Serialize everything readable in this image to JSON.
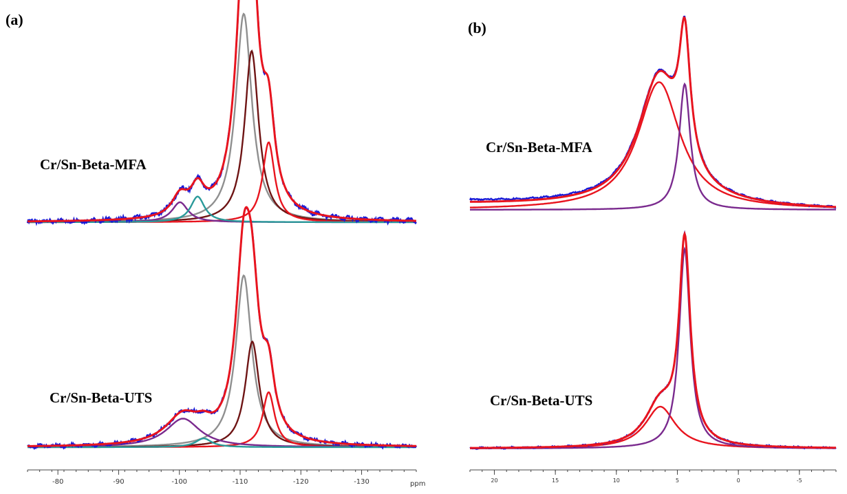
{
  "panels": {
    "a": {
      "label": "(a)",
      "unit": "ppm"
    },
    "b": {
      "label": "(b)"
    }
  },
  "colors": {
    "experimental": "#1a1ad6",
    "fit_total": "#e8141e",
    "q4_site_a": "#8f8f8f",
    "q4_site_b": "#6e1414",
    "q3_component": "#2a9a9a",
    "q2_component": "#7a2a8e",
    "sn_component": "#7a2a8e",
    "axis": "#444444"
  },
  "chart_data": [
    {
      "type": "line",
      "panel": "(a)",
      "xlabel": "ppm",
      "xlim": [
        -75,
        -139
      ],
      "x_ticks": [
        -80,
        -90,
        -100,
        -110,
        -120,
        -130
      ],
      "x_tick_labels": [
        "-80",
        "-90",
        "-100",
        "-110",
        "-120",
        "-130"
      ],
      "spectra": [
        {
          "name": "Cr/Sn-Beta-MFA",
          "components": [
            {
              "center": -110.6,
              "height": 0.73,
              "width": 1.6,
              "color_key": "q4_site_a"
            },
            {
              "center": -111.9,
              "height": 0.6,
              "width": 1.4,
              "color_key": "q4_site_b"
            },
            {
              "center": -114.7,
              "height": 0.28,
              "width": 1.2,
              "color_key": "fit_total"
            },
            {
              "center": -100.1,
              "height": 0.07,
              "width": 1.6,
              "color_key": "q2_component"
            },
            {
              "center": -103.0,
              "height": 0.09,
              "width": 1.4,
              "color_key": "q3_component"
            }
          ]
        },
        {
          "name": "Cr/Sn-Beta-UTS",
          "components": [
            {
              "center": -110.6,
              "height": 0.78,
              "width": 1.6,
              "color_key": "q4_site_a"
            },
            {
              "center": -112.0,
              "height": 0.48,
              "width": 1.4,
              "color_key": "q4_site_b"
            },
            {
              "center": -114.7,
              "height": 0.25,
              "width": 1.2,
              "color_key": "fit_total"
            },
            {
              "center": -100.6,
              "height": 0.13,
              "width": 3.4,
              "color_key": "q2_component"
            },
            {
              "center": -104.0,
              "height": 0.04,
              "width": 1.6,
              "color_key": "q3_component"
            }
          ]
        }
      ]
    },
    {
      "type": "line",
      "panel": "(b)",
      "xlim": [
        22,
        -8
      ],
      "x_ticks": [
        20,
        15,
        10,
        5,
        0,
        -5
      ],
      "x_tick_labels": [
        "20",
        "15",
        "10",
        "5",
        "0",
        "-5"
      ],
      "spectra": [
        {
          "name": "Cr/Sn-Beta-MFA",
          "baseline_offset": 0.04,
          "components": [
            {
              "center": 6.5,
              "height": 0.64,
              "width": 2.1,
              "color_key": "fit_total"
            },
            {
              "center": 4.4,
              "height": 0.63,
              "width": 0.55,
              "color_key": "sn_component"
            }
          ]
        },
        {
          "name": "Cr/Sn-Beta-UTS",
          "baseline_offset": 0.0,
          "components": [
            {
              "center": 6.4,
              "height": 0.21,
              "width": 1.5,
              "color_key": "fit_total"
            },
            {
              "center": 4.4,
              "height": 1.0,
              "width": 0.55,
              "color_key": "sn_component"
            }
          ]
        }
      ]
    }
  ]
}
